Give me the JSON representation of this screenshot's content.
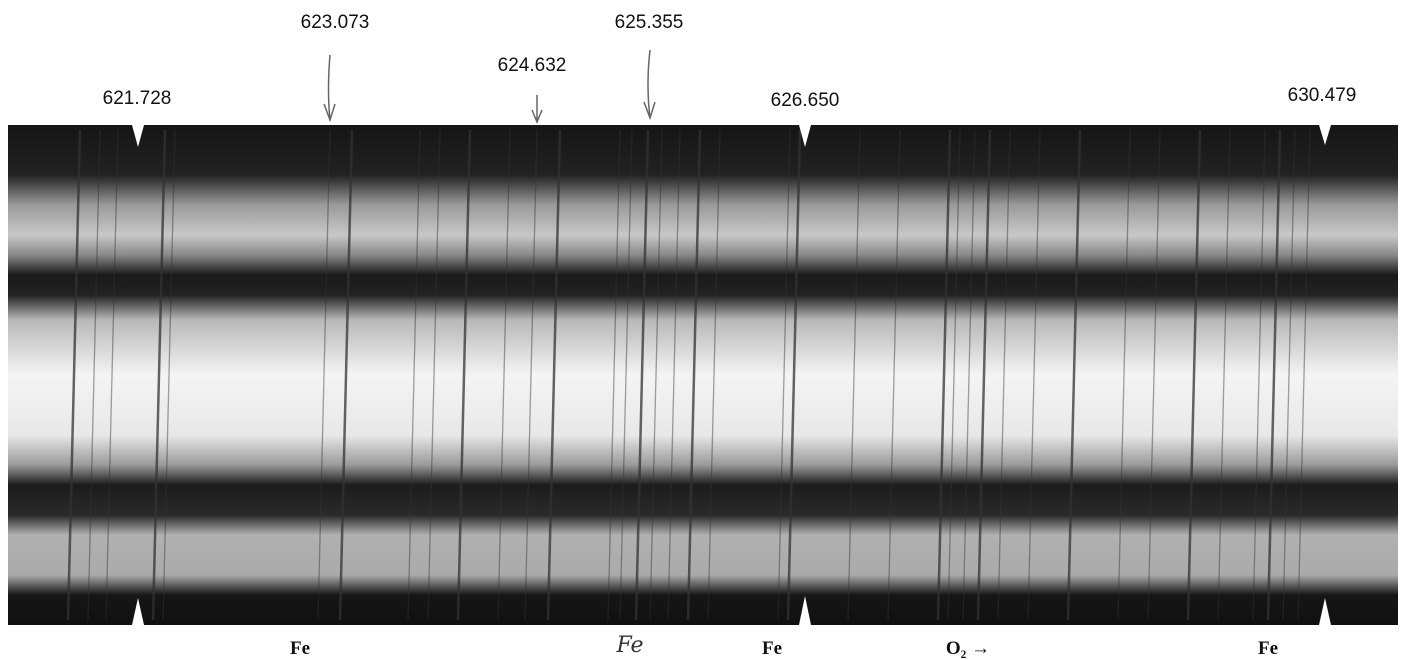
{
  "wavelength_labels": [
    "621.728",
    "623.073",
    "624.632",
    "625.355",
    "626.650",
    "630.479"
  ],
  "element_labels": [
    "Fe",
    "Fe",
    "Fe",
    "O₂ →",
    "Fe"
  ]
}
